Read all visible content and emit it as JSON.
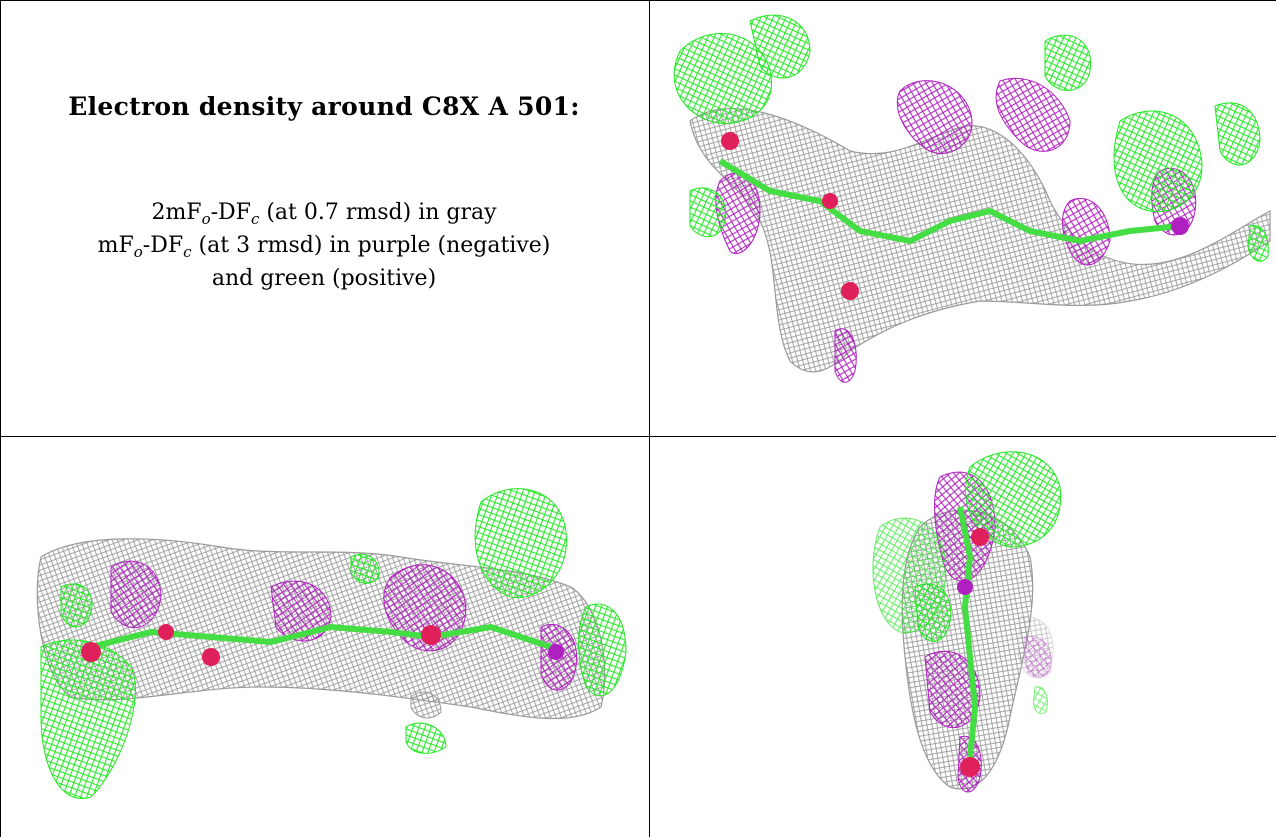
{
  "caption": {
    "title": "Electron density around C8X A 501:",
    "line1_pre": "2mF",
    "line1_sub1": "o",
    "line1_mid": "-DF",
    "line1_sub2": "c",
    "line1_post": " (at 0.7 rmsd) in gray",
    "line2_pre": "mF",
    "line2_sub1": "o",
    "line2_mid": "-DF",
    "line2_sub2": "c",
    "line2_post": " (at 3 rmsd) in purple (negative)",
    "line3": "and green (positive)"
  },
  "colors": {
    "gray_mesh": "#9a9a9a",
    "purple_mesh": "#b020c0",
    "green_mesh": "#22e822",
    "atom_red": "#e0205a",
    "bond_green": "#44dd44"
  },
  "panels": [
    {
      "name": "view-top-right",
      "content": "electron density mesh render"
    },
    {
      "name": "view-bottom-left",
      "content": "electron density mesh render"
    },
    {
      "name": "view-bottom-right",
      "content": "electron density mesh render"
    }
  ]
}
